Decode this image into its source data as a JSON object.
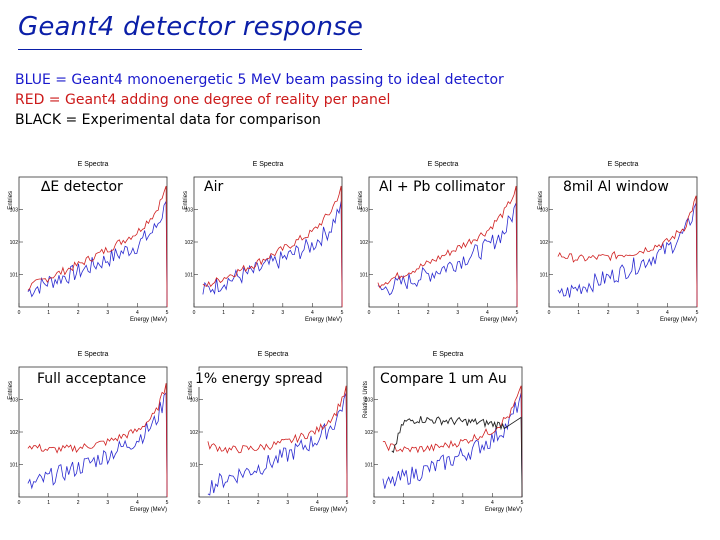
{
  "title": "Geant4 detector response",
  "legend": [
    {
      "text": "BLUE = Geant4 monoenergetic 5 MeV beam passing to ideal detector",
      "color": "#1a1acc"
    },
    {
      "text": "RED = Geant4 adding one degree of reality per panel",
      "color": "#cc1a1a"
    },
    {
      "text": "BLACK = Experimental data for comparison",
      "color": "#000000"
    }
  ],
  "colors": {
    "blue": "#2b2bd0",
    "red": "#d02020",
    "black": "#222222",
    "title": "#0b1fa8"
  },
  "chart_data": [
    {
      "type": "line",
      "panel_title": "E Spectra",
      "label": "∆E detector",
      "xlabel": "Energy (MeV)",
      "ylabel": "Entries",
      "ylog": true,
      "xlim": [
        0,
        5
      ],
      "series": [
        {
          "color": "blue",
          "x": [
            0.3,
            1,
            2,
            3,
            4,
            4.6,
            4.9
          ],
          "y": [
            3,
            6,
            12,
            30,
            80,
            250,
            1000
          ]
        },
        {
          "color": "red",
          "x": [
            0.3,
            1,
            2,
            3,
            4,
            4.6,
            4.9
          ],
          "y": [
            4,
            8,
            20,
            60,
            200,
            800,
            3000
          ]
        }
      ]
    },
    {
      "type": "line",
      "panel_title": "E Spectra",
      "label": "Air",
      "xlabel": "Energy (MeV)",
      "ylabel": "Entries",
      "ylog": true,
      "xlim": [
        0,
        5
      ],
      "series": [
        {
          "color": "blue",
          "x": [
            0.3,
            1,
            2,
            3,
            4,
            4.6,
            4.9
          ],
          "y": [
            3,
            6,
            12,
            30,
            80,
            250,
            1000
          ]
        },
        {
          "color": "red",
          "x": [
            0.3,
            1,
            2,
            3,
            4,
            4.6,
            4.9
          ],
          "y": [
            4,
            8,
            20,
            60,
            200,
            800,
            3000
          ]
        }
      ]
    },
    {
      "type": "line",
      "panel_title": "E Spectra",
      "label": "Al + Pb collimator",
      "xlabel": "Energy (MeV)",
      "ylabel": "Entries",
      "ylog": true,
      "xlim": [
        0,
        5
      ],
      "series": [
        {
          "color": "blue",
          "x": [
            0.3,
            1,
            2,
            3,
            4,
            4.6,
            4.9
          ],
          "y": [
            3,
            5,
            10,
            25,
            70,
            220,
            900
          ]
        },
        {
          "color": "red",
          "x": [
            0.3,
            1,
            2,
            3,
            4,
            4.6,
            4.9
          ],
          "y": [
            5,
            9,
            22,
            65,
            220,
            900,
            3000
          ]
        }
      ]
    },
    {
      "type": "line",
      "panel_title": "E Spectra",
      "label": "8mil Al window",
      "xlabel": "Energy (MeV)",
      "ylabel": "Entries",
      "ylog": true,
      "xlim": [
        0,
        5
      ],
      "series": [
        {
          "color": "blue",
          "x": [
            0.3,
            1,
            2,
            3,
            4,
            4.6,
            4.9
          ],
          "y": [
            2,
            4,
            8,
            20,
            60,
            200,
            900
          ]
        },
        {
          "color": "red",
          "x": [
            0.3,
            1,
            2,
            3,
            4,
            4.6,
            4.9
          ],
          "y": [
            40,
            30,
            35,
            50,
            100,
            300,
            1500
          ]
        }
      ]
    },
    {
      "type": "line",
      "panel_title": "E Spectra",
      "label": "Full acceptance",
      "xlabel": "Energy (MeV)",
      "ylabel": "Entries",
      "ylog": true,
      "xlim": [
        0,
        5
      ],
      "series": [
        {
          "color": "blue",
          "x": [
            0.3,
            1,
            2,
            3,
            4,
            4.6,
            4.9
          ],
          "y": [
            2,
            4,
            8,
            20,
            60,
            200,
            900
          ]
        },
        {
          "color": "red",
          "x": [
            0.3,
            1,
            2,
            3,
            4,
            4.6,
            4.9
          ],
          "y": [
            40,
            28,
            32,
            50,
            110,
            350,
            1800
          ]
        }
      ]
    },
    {
      "type": "line",
      "panel_title": "E Spectra",
      "label": "1% energy spread",
      "xlabel": "Energy (MeV)",
      "ylabel": "Entries",
      "ylog": true,
      "xlim": [
        0,
        5
      ],
      "series": [
        {
          "color": "blue",
          "x": [
            0.3,
            1,
            2,
            3,
            4,
            4.6,
            4.9
          ],
          "y": [
            2,
            4,
            8,
            20,
            60,
            200,
            900
          ]
        },
        {
          "color": "red",
          "x": [
            0.3,
            1,
            2,
            3,
            4,
            4.6,
            4.9
          ],
          "y": [
            40,
            28,
            32,
            50,
            110,
            350,
            1500
          ]
        }
      ]
    },
    {
      "type": "line",
      "panel_title": "E Spectra",
      "label": "Compare 1 um Au",
      "xlabel": "Energy (MeV)",
      "ylabel": "Relative Units",
      "ylog": true,
      "xlim": [
        0,
        5
      ],
      "series": [
        {
          "color": "blue",
          "x": [
            0.3,
            1,
            2,
            3,
            4,
            4.6,
            4.9
          ],
          "y": [
            2,
            4,
            8,
            20,
            60,
            200,
            900
          ]
        },
        {
          "color": "red",
          "x": [
            0.3,
            1,
            2,
            3,
            4,
            4.6,
            4.9
          ],
          "y": [
            40,
            28,
            32,
            50,
            110,
            350,
            1500
          ]
        },
        {
          "color": "black",
          "x": [
            0.6,
            1,
            1.5,
            2,
            2.5,
            3,
            3.5,
            4,
            4.4
          ],
          "y": [
            20,
            200,
            250,
            230,
            220,
            210,
            200,
            180,
            160
          ]
        }
      ]
    }
  ]
}
